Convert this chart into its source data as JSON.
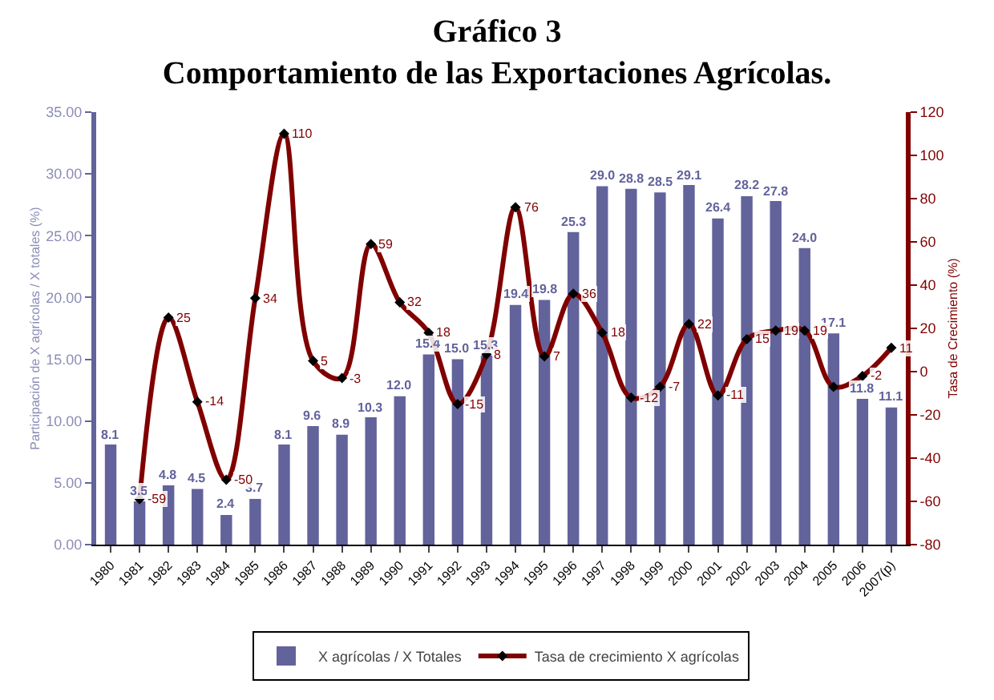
{
  "chart_data": {
    "type": "bar",
    "title": "Gráfico 3",
    "subtitle": "Comportamiento de las Exportaciones Agrícolas.",
    "categories": [
      "1980",
      "1981",
      "1982",
      "1983",
      "1984",
      "1985",
      "1986",
      "1987",
      "1988",
      "1989",
      "1990",
      "1991",
      "1992",
      "1993",
      "1994",
      "1995",
      "1996",
      "1997",
      "1998",
      "1999",
      "2000",
      "2001",
      "2002",
      "2003",
      "2004",
      "2005",
      "2006",
      "2007(p)"
    ],
    "series": [
      {
        "name": "X agrícolas / X Totales",
        "color": "#62639b",
        "values": [
          8.1,
          3.5,
          4.8,
          4.5,
          2.4,
          3.7,
          8.1,
          9.6,
          8.9,
          10.3,
          12.0,
          15.4,
          15.0,
          15.3,
          19.4,
          19.8,
          25.3,
          29.0,
          28.8,
          28.5,
          29.1,
          26.4,
          28.2,
          27.8,
          24.0,
          17.1,
          11.8,
          11.1
        ],
        "value_labels": [
          "8.1",
          "3.5",
          "4.8",
          "4.5",
          "2.4",
          "3.7",
          "8.1",
          "9.6",
          "8.9",
          "10.3",
          "12.0",
          "15.4",
          "15.0",
          "15.3",
          "19.4",
          "19.8",
          "25.3",
          "29.0",
          "28.8",
          "28.5",
          "29.1",
          "26.4",
          "28.2",
          "27.8",
          "24.0",
          "17.1",
          "11.8",
          "11.1"
        ]
      },
      {
        "name": "Tasa de crecimiento X agrícolas",
        "type": "line",
        "axis": "y2",
        "color": "#800000",
        "marker": "diamond",
        "values": [
          null,
          -59,
          25,
          -14,
          -50,
          34,
          110,
          5,
          -3,
          59,
          32,
          18,
          -15,
          8,
          76,
          7,
          36,
          18,
          -12,
          -7,
          22,
          -11,
          15,
          19,
          19,
          -7,
          -2,
          11
        ],
        "value_labels": [
          null,
          "-59",
          "25",
          "-14",
          "-50",
          "34",
          "110",
          "5",
          "-3",
          "59",
          "32",
          "18",
          "-15",
          "8",
          "76",
          "7",
          "36",
          "18",
          "-12",
          "-7",
          "22",
          "-11",
          "15",
          "19",
          "19",
          null,
          "-2",
          "11"
        ]
      }
    ],
    "ylabel": "Participación de X agrícolas / X totales (%)",
    "y2label": "Tasa de Crecimiento (%)",
    "ylim": [
      0,
      35
    ],
    "yticks": [
      {
        "value": 0,
        "label": "0.00"
      },
      {
        "value": 5,
        "label": "5.00"
      },
      {
        "value": 10,
        "label": "10.00"
      },
      {
        "value": 15,
        "label": "15.00"
      },
      {
        "value": 20,
        "label": "20.00"
      },
      {
        "value": 25,
        "label": "25.00"
      },
      {
        "value": 30,
        "label": "30.00"
      },
      {
        "value": 35,
        "label": "35.00"
      }
    ],
    "y2lim": [
      -80,
      120
    ],
    "y2ticks": [
      -80,
      -60,
      -40,
      -20,
      0,
      20,
      40,
      60,
      80,
      100,
      120
    ],
    "legend": "bottom",
    "grid": false
  }
}
